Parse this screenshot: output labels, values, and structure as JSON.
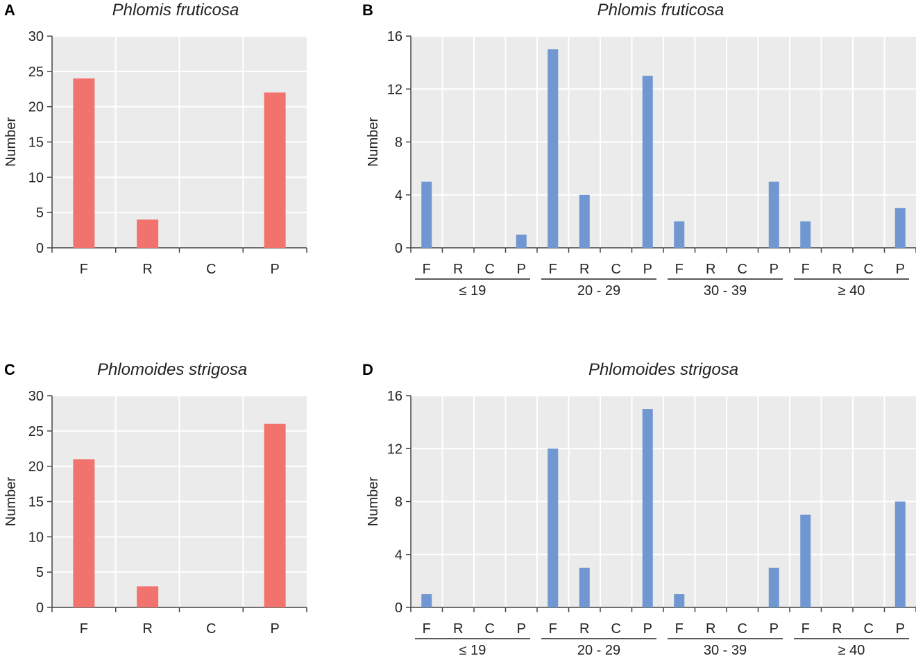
{
  "chart_data": [
    {
      "panel": "A",
      "type": "bar",
      "title": "Phlomis fruticosa",
      "ylabel": "Number",
      "xlabel": "",
      "ylim": [
        0,
        30
      ],
      "yticks": [
        0,
        5,
        10,
        15,
        20,
        25,
        30
      ],
      "categories": [
        "F",
        "R",
        "C",
        "P"
      ],
      "values": [
        24,
        4,
        0,
        22
      ],
      "grid": true,
      "color": "#f2736d"
    },
    {
      "panel": "B",
      "type": "bar",
      "title": "Phlomis fruticosa",
      "ylabel": "Number",
      "xlabel": "",
      "ylim": [
        0,
        16
      ],
      "yticks": [
        0,
        4,
        8,
        12,
        16
      ],
      "categories": [
        "F",
        "R",
        "C",
        "P",
        "F",
        "R",
        "C",
        "P",
        "F",
        "R",
        "C",
        "P",
        "F",
        "R",
        "C",
        "P"
      ],
      "groups": [
        "≤ 19",
        "20 - 29",
        "30 - 39",
        "≥ 40"
      ],
      "values": [
        5,
        0,
        0,
        1,
        15,
        4,
        0,
        13,
        2,
        0,
        0,
        5,
        2,
        0,
        0,
        3
      ],
      "grid": true,
      "color": "#7097d1"
    },
    {
      "panel": "C",
      "type": "bar",
      "title": "Phlomoides strigosa",
      "ylabel": "Number",
      "xlabel": "",
      "ylim": [
        0,
        30
      ],
      "yticks": [
        0,
        5,
        10,
        15,
        20,
        25,
        30
      ],
      "categories": [
        "F",
        "R",
        "C",
        "P"
      ],
      "values": [
        21,
        3,
        0,
        26
      ],
      "grid": true,
      "color": "#f2736d"
    },
    {
      "panel": "D",
      "type": "bar",
      "title": "Phlomoides strigosa",
      "ylabel": "Number",
      "xlabel": "",
      "ylim": [
        0,
        16
      ],
      "yticks": [
        0,
        4,
        8,
        12,
        16
      ],
      "categories": [
        "F",
        "R",
        "C",
        "P",
        "F",
        "R",
        "C",
        "P",
        "F",
        "R",
        "C",
        "P",
        "F",
        "R",
        "C",
        "P"
      ],
      "groups": [
        "≤ 19",
        "20 - 29",
        "30 - 39",
        "≥ 40"
      ],
      "values": [
        1,
        0,
        0,
        0,
        12,
        3,
        0,
        15,
        1,
        0,
        0,
        3,
        7,
        0,
        0,
        8
      ],
      "grid": true,
      "color": "#7097d1"
    }
  ]
}
